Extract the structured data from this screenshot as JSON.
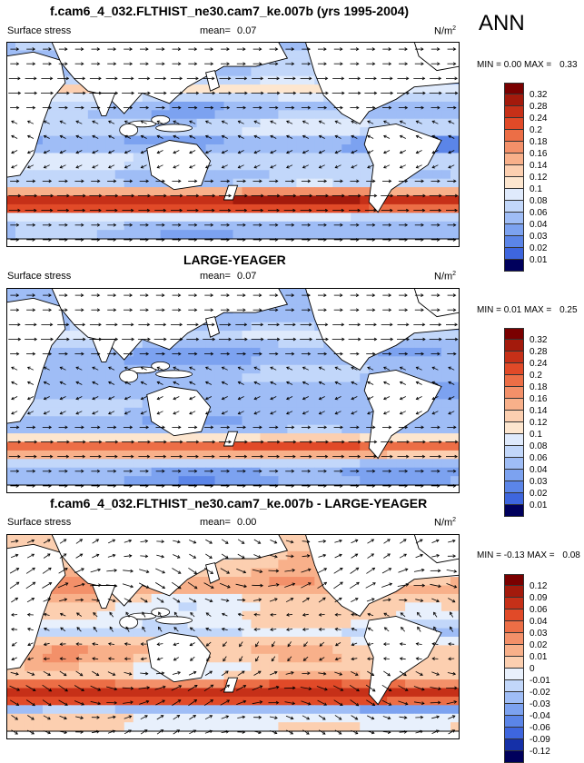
{
  "season": "ANN",
  "units": "N/m²",
  "colors": {
    "pos": [
      "#fde6cf",
      "#fccfb0",
      "#f8b08a",
      "#f39069",
      "#ec6e46",
      "#e14a28",
      "#c63018",
      "#a31a0c",
      "#7a0000"
    ],
    "neg": [
      "#dfeafc",
      "#c2d7fa",
      "#9fbdf6",
      "#7ca2f0",
      "#5b85e8",
      "#3e66de",
      "#2746cc",
      "#1530a8",
      "#081c80",
      "#00005c"
    ],
    "land": "#ffffff",
    "coast": "#000000"
  },
  "panels": [
    {
      "title": "f.cam6_4_032.FLTHIST_ne30.cam7_ke.007b (yrs 1995-2004)",
      "variable": "Surface stress",
      "mean_label": "mean=",
      "mean": "0.07",
      "units_label": "N/m",
      "units_sup": "2",
      "min_label": "MIN =",
      "min": "0.00",
      "max_label": "MAX =",
      "max": "0.33",
      "levels": [
        "0.32",
        "0.28",
        "0.24",
        "0.2",
        "0.18",
        "0.16",
        "0.14",
        "0.12",
        "0.1",
        "0.08",
        "0.06",
        "0.04",
        "0.03",
        "0.02",
        "0.01"
      ],
      "palette": [
        "#7a0000",
        "#a31a0c",
        "#c63018",
        "#e14a28",
        "#ec6e46",
        "#f39069",
        "#f8b08a",
        "#fccfb0",
        "#fde6cf",
        "#dfeafc",
        "#c2d7fa",
        "#9fbdf6",
        "#7ca2f0",
        "#5b85e8",
        "#3e66de",
        "#00005c"
      ],
      "field_mode": "abs"
    },
    {
      "title": "LARGE-YEAGER",
      "variable": "Surface stress",
      "mean_label": "mean=",
      "mean": "0.07",
      "units_label": "N/m",
      "units_sup": "2",
      "min_label": "MIN =",
      "min": "0.01",
      "max_label": "MAX =",
      "max": "0.25",
      "levels": [
        "0.32",
        "0.28",
        "0.24",
        "0.2",
        "0.18",
        "0.16",
        "0.14",
        "0.12",
        "0.1",
        "0.08",
        "0.06",
        "0.04",
        "0.03",
        "0.02",
        "0.01"
      ],
      "palette": [
        "#7a0000",
        "#a31a0c",
        "#c63018",
        "#e14a28",
        "#ec6e46",
        "#f39069",
        "#f8b08a",
        "#fccfb0",
        "#fde6cf",
        "#dfeafc",
        "#c2d7fa",
        "#9fbdf6",
        "#7ca2f0",
        "#5b85e8",
        "#3e66de",
        "#00005c"
      ],
      "field_mode": "abs2"
    },
    {
      "title": "f.cam6_4_032.FLTHIST_ne30.cam7_ke.007b - LARGE-YEAGER",
      "variable": "Surface stress",
      "mean_label": "mean=",
      "mean": "0.00",
      "units_label": "N/m",
      "units_sup": "2",
      "min_label": "MIN =",
      "min": "-0.13",
      "max_label": "MAX =",
      "max": "0.08",
      "levels": [
        "0.12",
        "0.09",
        "0.06",
        "0.04",
        "0.03",
        "0.02",
        "0.01",
        "0",
        "-0.01",
        "-0.02",
        "-0.03",
        "-0.04",
        "-0.06",
        "-0.09",
        "-0.12"
      ],
      "palette": [
        "#7a0000",
        "#a31a0c",
        "#c63018",
        "#e14a28",
        "#ec6e46",
        "#f39069",
        "#f8b08a",
        "#fccfb0",
        "#e8f0fc",
        "#c2d7fa",
        "#9fbdf6",
        "#7ca2f0",
        "#5b85e8",
        "#3e66de",
        "#1530a8",
        "#00005c"
      ],
      "field_mode": "diff"
    }
  ]
}
